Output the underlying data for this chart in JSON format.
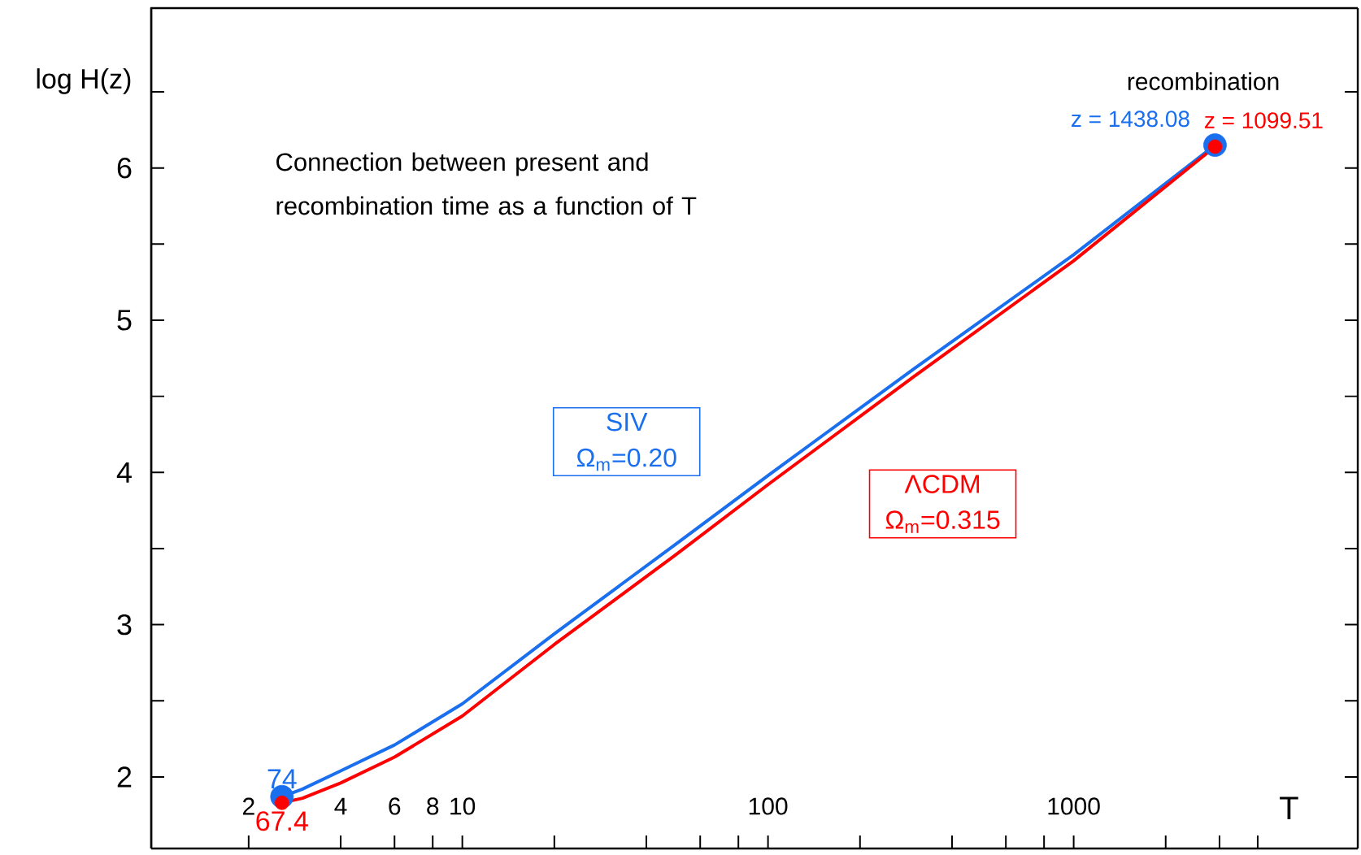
{
  "chart_data": {
    "type": "line",
    "title": "Connection between present and recombination time as a function of  T",
    "xlabel": "T",
    "ylabel": "log H(z)",
    "log": "x",
    "xlim": [
      0.96,
      8500
    ],
    "ylim": [
      1.53,
      7.05
    ],
    "xticks": [
      2,
      4,
      6,
      8,
      10,
      {
        "value": 20,
        "label": null
      },
      {
        "value": 40,
        "label": null
      },
      {
        "value": 60,
        "label": null
      },
      {
        "value": 80,
        "label": null
      },
      100,
      {
        "value": 200,
        "label": null
      },
      {
        "value": 400,
        "label": null
      },
      {
        "value": 600,
        "label": null
      },
      {
        "value": 800,
        "label": null
      },
      1000,
      {
        "value": 2000,
        "label": null
      },
      {
        "value": 3000,
        "label": null
      },
      {
        "value": 4000,
        "label": null
      }
    ],
    "yticks": [
      2,
      {
        "value": 2.5,
        "label": null
      },
      3,
      {
        "value": 3.5,
        "label": null
      },
      4,
      {
        "value": 4.5,
        "label": null
      },
      5,
      {
        "value": 5.5,
        "label": null
      },
      6,
      {
        "value": 6.5,
        "label": null
      }
    ],
    "series": [
      {
        "name": "SIV Ω$_{m}$=0.20",
        "color": "#1a6fef",
        "x": [
          2.57,
          3,
          4,
          6,
          10,
          20,
          50,
          100,
          300,
          1000,
          2900
        ],
        "values": [
          1.87,
          1.92,
          2.04,
          2.21,
          2.48,
          2.94,
          3.53,
          3.98,
          4.68,
          5.43,
          6.15
        ]
      },
      {
        "name": "ΛCDM Ω$_{m}$=0.315",
        "color": "#ff0000",
        "x": [
          2.57,
          3,
          4,
          6,
          10,
          20,
          50,
          100,
          300,
          1000,
          2900
        ],
        "values": [
          1.83,
          1.86,
          1.96,
          2.13,
          2.4,
          2.87,
          3.46,
          3.92,
          4.63,
          5.39,
          6.14
        ]
      },
      {
        "type": "scatter",
        "color": "#1a6fef",
        "x": [
          2.57,
          2900
        ],
        "values": [
          1.87,
          6.15
        ]
      },
      {
        "type": "scatter",
        "color": "#ff0000",
        "x": [
          2.57,
          2900
        ],
        "values": [
          1.83,
          6.14
        ]
      }
    ],
    "annotations": [
      "recombination",
      "74",
      "z = 1438.08",
      "67.4",
      "z = 1099.51"
    ]
  }
}
